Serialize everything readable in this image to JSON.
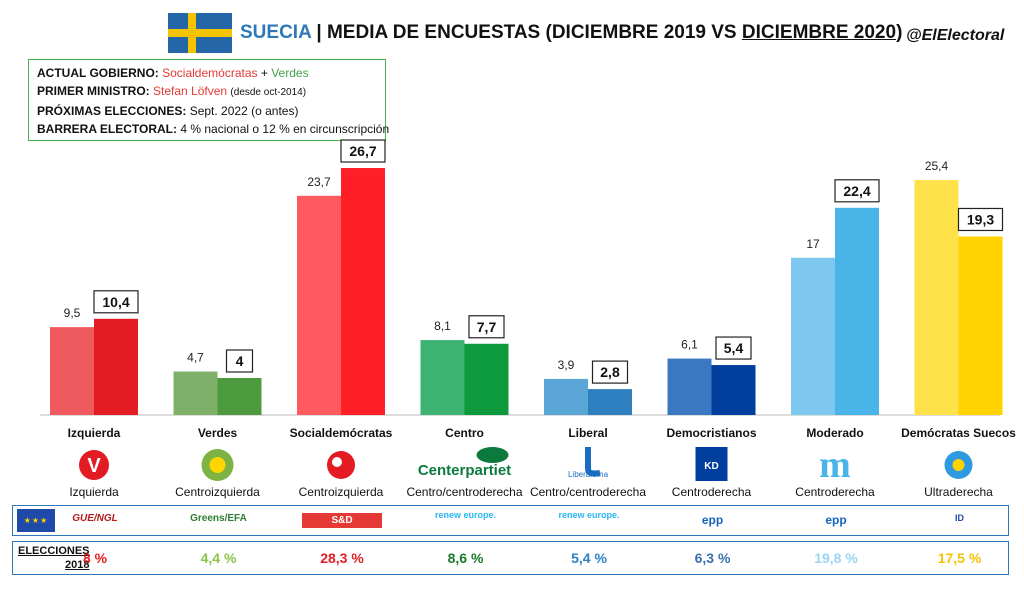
{
  "header": {
    "country": "SUECIA",
    "title_mid": " | MEDIA DE ENCUESTAS (DICIEMBRE 2019 VS ",
    "title_end": "DICIEMBRE 2020",
    "title_close": ")",
    "handle": "@ElElectoral"
  },
  "info": {
    "gov_label": "ACTUAL GOBIERNO:",
    "gov_party1": "Socialdemócratas",
    "gov_plus": " + ",
    "gov_party2": "Verdes",
    "pm_label": "PRIMER MINISTRO:",
    "pm_name": "Stefan Löfven",
    "pm_since": "(desde oct-2014)",
    "next_label": "PRÓXIMAS ELECCIONES:",
    "next_value": "Sept. 2022 (o antes)",
    "barrier_label": "BARRERA ELECTORAL:",
    "barrier_value": "4 % nacional o 12 % en circunscripción"
  },
  "chart_data": {
    "type": "bar",
    "categories": [
      "Izquierda",
      "Verdes",
      "Socialdemócratas",
      "Centro",
      "Liberal",
      "Democristianos",
      "Moderado",
      "Demócratas Suecos"
    ],
    "series": [
      {
        "values": [
          9.5,
          4.7,
          23.7,
          8.1,
          3.9,
          6.1,
          17,
          25.4
        ],
        "labels": [
          "9,5",
          "4,7",
          "23,7",
          "8,1",
          "3,9",
          "6,1",
          "17",
          "25,4"
        ]
      },
      {
        "values": [
          10.4,
          4,
          26.7,
          7.7,
          2.8,
          5.4,
          22.4,
          19.3
        ],
        "labels": [
          "10,4",
          "4",
          "26,7",
          "7,7",
          "2,8",
          "5,4",
          "22,4",
          "19,3"
        ]
      }
    ],
    "colors_2019": [
      "#ef5a5f",
      "#7fb069",
      "#ff5a5f",
      "#3cb371",
      "#5aa6d6",
      "#3a78c2",
      "#7ec8f0",
      "#ffe14a"
    ],
    "colors_2020": [
      "#e31b23",
      "#4e9a3f",
      "#ff1f26",
      "#0c9a3c",
      "#2e7fc0",
      "#003f9e",
      "#48b4e8",
      "#ffd200"
    ],
    "ylim": [
      0,
      28
    ]
  },
  "parties": [
    {
      "name": "Izquierda",
      "logo_text": "V",
      "logo_color": "#e31b23",
      "ideology": "Izquierda",
      "eu_group": "GUE/NGL",
      "elec": "8 %",
      "elec_color": "#e31b23"
    },
    {
      "name": "Verdes",
      "logo_text": "",
      "logo_color": "#7cb342",
      "ideology": "Centroizquierda",
      "eu_group": "Greens/EFA",
      "elec": "4,4 %",
      "elec_color": "#8bc34a"
    },
    {
      "name": "Socialdemócratas",
      "logo_text": "",
      "logo_color": "#e31b23",
      "ideology": "Centroizquierda",
      "eu_group": "S&D",
      "elec": "28,3 %",
      "elec_color": "#e31b23"
    },
    {
      "name": "Centro",
      "logo_text": "Centerpartiet",
      "logo_color": "#0c7a3c",
      "ideology": "Centro/centroderecha",
      "eu_group": "renew europe.",
      "elec": "8,6 %",
      "elec_color": "#1b7a2a"
    },
    {
      "name": "Liberal",
      "logo_text": "Liberalerna",
      "logo_color": "#1a6dc0",
      "ideology": "Centro/centroderecha",
      "eu_group": "renew europe.",
      "elec": "5,4 %",
      "elec_color": "#2e7fc0"
    },
    {
      "name": "Democristianos",
      "logo_text": "KD",
      "logo_color": "#003f9e",
      "ideology": "Centroderecha",
      "eu_group": "epp",
      "elec": "6,3 %",
      "elec_color": "#3a6fb0"
    },
    {
      "name": "Moderado",
      "logo_text": "m",
      "logo_color": "#48b4e8",
      "ideology": "Centroderecha",
      "eu_group": "epp",
      "elec": "19,8 %",
      "elec_color": "#9ad4f2"
    },
    {
      "name": "Demócratas Suecos",
      "logo_text": "",
      "logo_color": "#ffd200",
      "ideology": "Ultraderecha",
      "eu_group": "ID",
      "elec": "17,5 %",
      "elec_color": "#f5c400"
    }
  ],
  "elections": {
    "label": "ELECCIONES",
    "year": "2018"
  }
}
